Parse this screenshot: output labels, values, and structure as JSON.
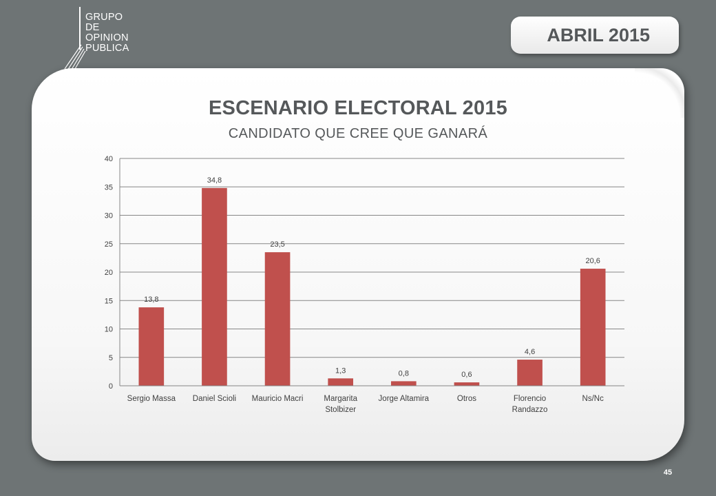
{
  "logo": {
    "lines": [
      "GRUPO",
      "DE",
      "OPINION",
      "PUBLICA"
    ]
  },
  "date_badge": "ABRIL 2015",
  "page_number": "45",
  "chart_data": {
    "type": "bar",
    "title": "ESCENARIO ELECTORAL 2015",
    "subtitle": "CANDIDATO QUE CREE QUE GANARÁ",
    "categories": [
      "Sergio Massa",
      "Daniel Scioli",
      "Mauricio Macri",
      "Margarita Stolbizer",
      "Jorge Altamira",
      "Otros",
      "Florencio Randazzo",
      "Ns/Nc"
    ],
    "category_lines": [
      [
        "Sergio Massa"
      ],
      [
        "Daniel Scioli"
      ],
      [
        "Mauricio Macri"
      ],
      [
        "Margarita",
        "Stolbizer"
      ],
      [
        "Jorge Altamira"
      ],
      [
        "Otros"
      ],
      [
        "Florencio",
        "Randazzo"
      ],
      [
        "Ns/Nc"
      ]
    ],
    "values": [
      13.8,
      34.8,
      23.5,
      1.3,
      0.8,
      0.6,
      4.6,
      20.6
    ],
    "value_labels": [
      "13,8",
      "34,8",
      "23,5",
      "1,3",
      "0,8",
      "0,6",
      "4,6",
      "20,6"
    ],
    "ylim": [
      0,
      40
    ],
    "yticks": [
      0,
      5,
      10,
      15,
      20,
      25,
      30,
      35,
      40
    ],
    "grid": true,
    "legend": "none",
    "bar_color": "#c0504d",
    "grid_color": "#868686"
  }
}
